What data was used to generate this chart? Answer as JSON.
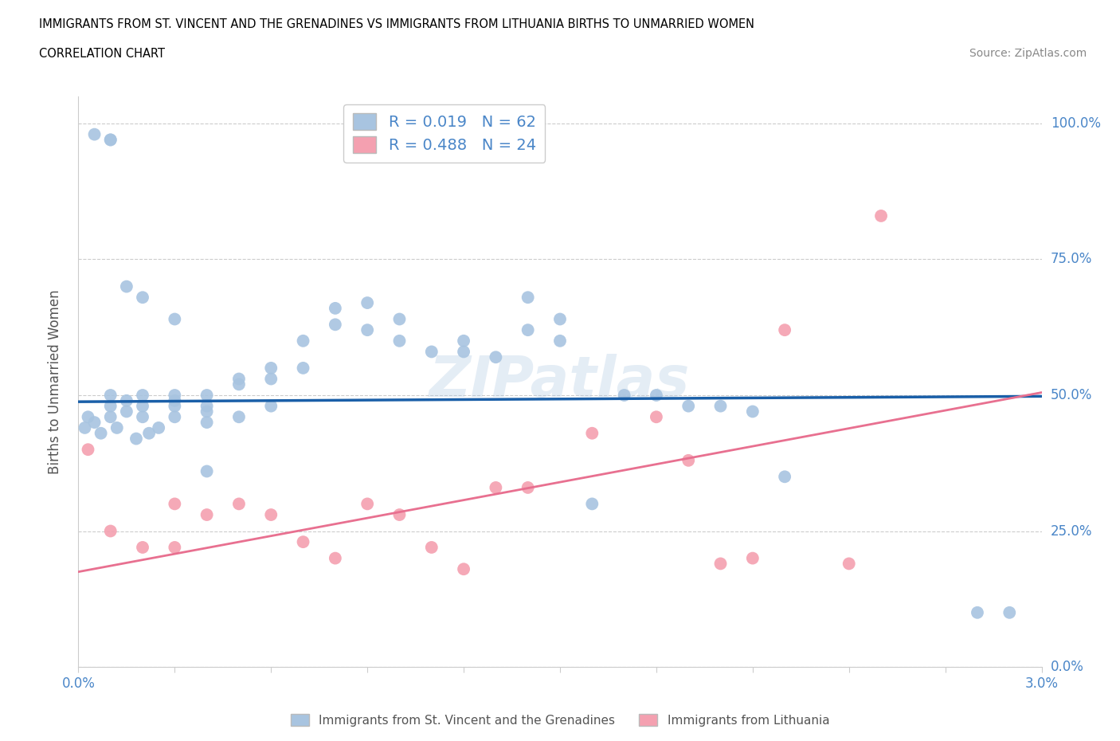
{
  "title_line1": "IMMIGRANTS FROM ST. VINCENT AND THE GRENADINES VS IMMIGRANTS FROM LITHUANIA BIRTHS TO UNMARRIED WOMEN",
  "title_line2": "CORRELATION CHART",
  "source_text": "Source: ZipAtlas.com",
  "ylabel": "Births to Unmarried Women",
  "xlim": [
    0.0,
    0.03
  ],
  "ylim": [
    0.0,
    1.05
  ],
  "ytick_vals": [
    0.0,
    0.25,
    0.5,
    0.75,
    1.0
  ],
  "watermark": "ZIPatlas",
  "legend_blue_label": "Immigrants from St. Vincent and the Grenadines",
  "legend_pink_label": "Immigrants from Lithuania",
  "R_blue": 0.019,
  "N_blue": 62,
  "R_pink": 0.488,
  "N_pink": 24,
  "blue_color": "#a8c4e0",
  "pink_color": "#f4a0b0",
  "trend_blue_color": "#1a5fa8",
  "trend_pink_color": "#e87090",
  "blue_scatter_x": [
    0.0002,
    0.0003,
    0.0005,
    0.0007,
    0.001,
    0.001,
    0.001,
    0.0012,
    0.0015,
    0.0015,
    0.0018,
    0.002,
    0.002,
    0.002,
    0.0022,
    0.0025,
    0.003,
    0.003,
    0.003,
    0.003,
    0.004,
    0.004,
    0.004,
    0.004,
    0.005,
    0.005,
    0.005,
    0.006,
    0.006,
    0.006,
    0.007,
    0.007,
    0.008,
    0.008,
    0.009,
    0.009,
    0.01,
    0.01,
    0.011,
    0.012,
    0.012,
    0.013,
    0.014,
    0.014,
    0.015,
    0.015,
    0.016,
    0.017,
    0.018,
    0.019,
    0.02,
    0.021,
    0.022,
    0.0005,
    0.001,
    0.001,
    0.0015,
    0.002,
    0.003,
    0.004,
    0.028,
    0.029
  ],
  "blue_scatter_y": [
    0.44,
    0.46,
    0.45,
    0.43,
    0.46,
    0.48,
    0.5,
    0.44,
    0.47,
    0.49,
    0.42,
    0.46,
    0.48,
    0.5,
    0.43,
    0.44,
    0.46,
    0.48,
    0.49,
    0.5,
    0.47,
    0.48,
    0.5,
    0.45,
    0.52,
    0.53,
    0.46,
    0.55,
    0.53,
    0.48,
    0.6,
    0.55,
    0.63,
    0.66,
    0.62,
    0.67,
    0.6,
    0.64,
    0.58,
    0.6,
    0.58,
    0.57,
    0.62,
    0.68,
    0.6,
    0.64,
    0.3,
    0.5,
    0.5,
    0.48,
    0.48,
    0.47,
    0.35,
    0.98,
    0.97,
    0.97,
    0.7,
    0.68,
    0.64,
    0.36,
    0.1,
    0.1
  ],
  "pink_scatter_x": [
    0.0003,
    0.001,
    0.002,
    0.003,
    0.003,
    0.004,
    0.005,
    0.006,
    0.007,
    0.008,
    0.009,
    0.01,
    0.011,
    0.012,
    0.013,
    0.014,
    0.016,
    0.018,
    0.019,
    0.02,
    0.021,
    0.022,
    0.024,
    0.025
  ],
  "pink_scatter_y": [
    0.4,
    0.25,
    0.22,
    0.3,
    0.22,
    0.28,
    0.3,
    0.28,
    0.23,
    0.2,
    0.3,
    0.28,
    0.22,
    0.18,
    0.33,
    0.33,
    0.43,
    0.46,
    0.38,
    0.19,
    0.2,
    0.62,
    0.19,
    0.83
  ],
  "blue_trend_x0": 0.0,
  "blue_trend_y0": 0.488,
  "blue_trend_x1": 0.03,
  "blue_trend_y1": 0.498,
  "pink_trend_x0": 0.0,
  "pink_trend_y0": 0.175,
  "pink_trend_x1": 0.03,
  "pink_trend_y1": 0.505,
  "background_color": "#ffffff",
  "grid_color": "#cccccc",
  "title_color": "#000000",
  "axis_label_color": "#555555",
  "tick_label_color": "#4a86c8"
}
